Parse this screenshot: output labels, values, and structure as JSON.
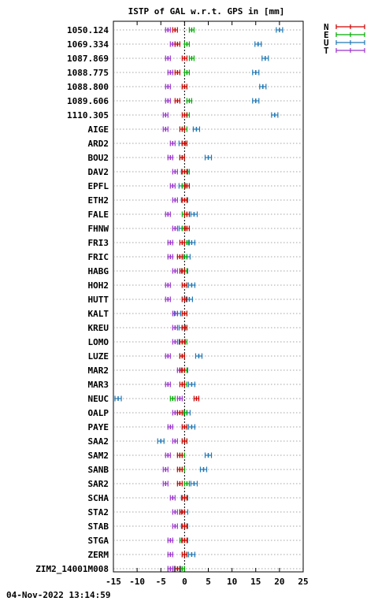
{
  "timestamp": "04-Nov-2022 13:14:59",
  "colors": {
    "N": "#cc0000",
    "E": "#00aa00",
    "U": "#1f77b4",
    "T": "#9933cc"
  },
  "chart_data": {
    "type": "scatter",
    "title": "ISTP of GAL w.r.t. GPS in [mm]",
    "xlim": [
      -15,
      25
    ],
    "xticks": [
      -15,
      -10,
      -5,
      0,
      5,
      10,
      15,
      20,
      25
    ],
    "grid": "horizontal dotted",
    "reference_line": 0,
    "legend_position": "top-right",
    "legend": [
      "N",
      "E",
      "U",
      "T"
    ],
    "stations": [
      "1050.124",
      "1069.334",
      "1087.869",
      "1088.775",
      "1088.800",
      "1089.606",
      "1110.305",
      "AIGE",
      "ARD2",
      "BOU2",
      "DAV2",
      "EPFL",
      "ETH2",
      "FALE",
      "FHNW",
      "FRI3",
      "FRIC",
      "HABG",
      "HOH2",
      "HUTT",
      "KALT",
      "KREU",
      "LOMO",
      "LUZE",
      "MAR2",
      "MAR3",
      "NEUC",
      "OALP",
      "PAYE",
      "SAA2",
      "SAM2",
      "SANB",
      "SAR2",
      "SCHA",
      "STA2",
      "STAB",
      "STGA",
      "ZERM",
      "ZIM2_14001M008"
    ],
    "series": [
      {
        "name": "N",
        "values": [
          -2,
          -1.5,
          0,
          -1.5,
          0,
          -1.5,
          0,
          -0.5,
          0,
          -0.5,
          0,
          0.5,
          0,
          0.5,
          0.5,
          -0.5,
          -1,
          -0.5,
          0,
          0,
          0,
          0,
          -0.5,
          -0.5,
          -0.5,
          -0.5,
          2.5,
          -1,
          0,
          0,
          -1,
          -1,
          -1,
          0,
          -0.5,
          0,
          0,
          0,
          -1.5
        ]
      },
      {
        "name": "E",
        "values": [
          1.5,
          0.5,
          1.5,
          0.5,
          0,
          1,
          0.5,
          0,
          0,
          -0.5,
          0.5,
          0,
          0,
          0,
          0,
          0.5,
          0,
          0,
          0,
          0,
          0,
          0,
          0,
          -0.5,
          0,
          0,
          -2.5,
          0,
          0,
          0,
          -0.5,
          -0.5,
          0.5,
          0,
          -0.5,
          0,
          -0.5,
          0,
          -0.5
        ]
      },
      {
        "name": "U",
        "values": [
          20,
          15.5,
          17,
          15,
          16.5,
          15,
          19,
          2.5,
          -0.5,
          5,
          0,
          -0.5,
          0,
          2,
          -0.5,
          1.5,
          0.5,
          0,
          1.5,
          1,
          -1.5,
          -0.5,
          -0.5,
          3,
          0,
          1.5,
          -14,
          0.5,
          1.5,
          -5,
          5,
          4,
          2,
          0,
          0,
          0,
          0,
          1.5,
          -1.5
        ]
      },
      {
        "name": "T",
        "values": [
          -3.5,
          -2.5,
          -3.5,
          -3,
          -3.5,
          -3.5,
          -4,
          -4,
          -2.5,
          -3,
          -2,
          -2.5,
          -2,
          -3.5,
          -2,
          -3,
          -3,
          -2,
          -3.5,
          -3.5,
          -2,
          -2,
          -2,
          -3.5,
          -1,
          -3.5,
          -1,
          -2,
          -3,
          -2,
          -3.5,
          -4,
          -4,
          -2.5,
          -2,
          -2,
          -3,
          -3,
          -3
        ]
      }
    ]
  }
}
